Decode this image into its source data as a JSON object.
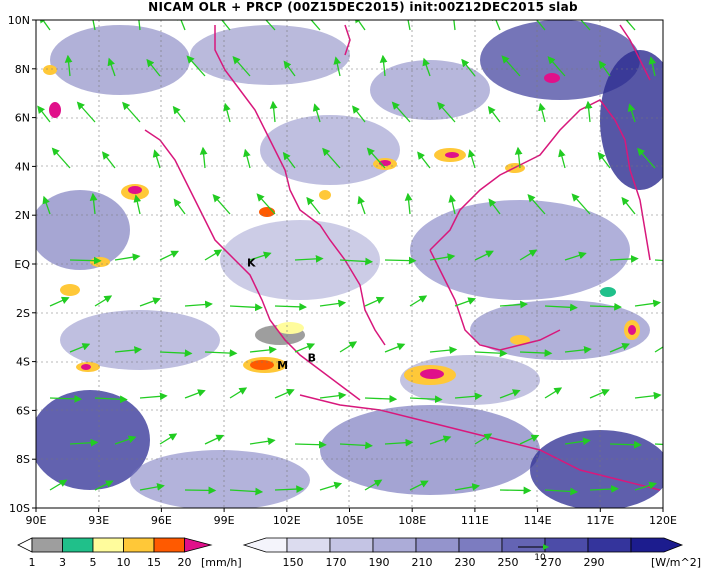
{
  "title": "NICAM OLR + PRCP (00Z15DEC2015) init:00Z12DEC2015 slab",
  "axes": {
    "lat_labels": [
      "10N",
      "8N",
      "6N",
      "4N",
      "2N",
      "EQ",
      "2S",
      "4S",
      "6S",
      "8S",
      "10S"
    ],
    "lon_labels": [
      "90E",
      "93E",
      "96E",
      "99E",
      "102E",
      "105E",
      "108E",
      "111E",
      "114E",
      "117E",
      "120E"
    ]
  },
  "map_labels": [
    {
      "text": "K",
      "lon": 100.3,
      "lat": -0.1
    },
    {
      "text": "M",
      "lon": 101.8,
      "lat": -4.3
    },
    {
      "text": "B",
      "lon": 103.2,
      "lat": -4.0
    }
  ],
  "precip_legend": {
    "unit": "[mm/h]",
    "ticks": [
      "1",
      "3",
      "5",
      "10",
      "15",
      "20"
    ],
    "colors": [
      "#9e9e9e",
      "#20c08a",
      "#fffc9c",
      "#ffc838",
      "#ff5a00",
      "#e0108a"
    ]
  },
  "olr_legend": {
    "unit": "[W/m^2]",
    "ticks": [
      "150",
      "170",
      "190",
      "210",
      "230",
      "250",
      "270",
      "290"
    ],
    "colors": [
      "#f4f4fb",
      "#dcdcef",
      "#c4c4e4",
      "#acacd8",
      "#9494cc",
      "#7c7cc0",
      "#6464b4",
      "#4c4ca8",
      "#34349c",
      "#1c1c8e"
    ],
    "vector_label": "10"
  },
  "colors": {
    "coast": "#d8187c",
    "wind": "#22cc22",
    "olr_light": "#ffffff",
    "olr_dark": "#2a2a90"
  }
}
